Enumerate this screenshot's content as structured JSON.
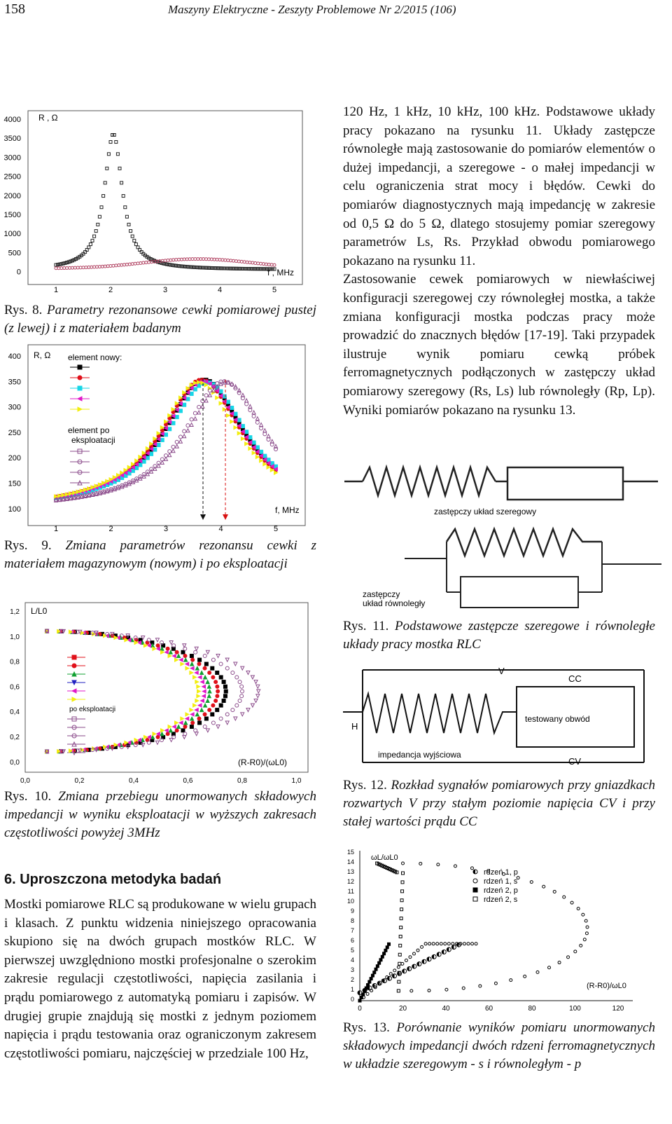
{
  "header": {
    "page_number": "158",
    "journal": "Maszyny Elektryczne - Zeszyty Problemowe Nr 2/2015 (106)"
  },
  "figures": {
    "fig8": {
      "caption_label": "Rys. 8.",
      "caption": " Parametry rezonansowe cewki pomiarowej pustej (z lewej) i z materiałem badanym",
      "y_axis_label": "R , Ω",
      "x_axis_label": "f , MHz",
      "y_ticks": [
        "4000",
        "3500",
        "3000",
        "2500",
        "2000",
        "1500",
        "1000",
        "500",
        "0"
      ],
      "x_ticks": [
        "1",
        "2",
        "3",
        "4",
        "5"
      ]
    },
    "fig9": {
      "caption_label": "Rys. 9.",
      "caption": " Zmiana parametrów rezonansu cewki z materiałem magazynowym (nowym) i po eksploatacji",
      "y_axis_label": "R, Ω",
      "x_axis_label": "f, MHz",
      "legend_new": "element nowy:",
      "legend_used_1": "element po",
      "legend_used_2": "eksploatacji",
      "y_ticks": [
        "400",
        "350",
        "300",
        "250",
        "200",
        "150",
        "100"
      ],
      "x_ticks": [
        "1",
        "2",
        "3",
        "4",
        "5"
      ]
    },
    "fig10": {
      "caption_label": "Rys. 10.",
      "caption": " Zmiana przebiegu unormowanych składowych impedancji w wyniku eksploatacji w wyższych zakresach częstotliwości powyżej 3MHz",
      "y_axis_label": "L/L0",
      "x_axis_label": "(R-R0)/(ωL0)",
      "legend_used": "po eksploatacji",
      "y_ticks": [
        "1,2",
        "1,0",
        "0,8",
        "0,6",
        "0,4",
        "0,2",
        "0,0"
      ],
      "x_ticks": [
        "0,0",
        "0,2",
        "0,4",
        "0,6",
        "0,8",
        "1,0"
      ]
    },
    "fig11": {
      "caption_label": "Rys. 11.",
      "caption": " Podstawowe zastępcze szeregowe i równoległe układy pracy mostka RLC",
      "series_label": "zastępczy układ szeregowy",
      "parallel_label_1": "zastępczy",
      "parallel_label_2": "układ równoległy"
    },
    "fig12": {
      "caption_label": "Rys. 12.",
      "caption": " Rozkład sygnałów pomiarowych przy gniazdkach rozwartych V przy stałym poziomie napięcia CV i przy stałej wartości prądu CC",
      "label_v": "V",
      "label_cc": "CC",
      "label_h": "H",
      "label_cv": "CV",
      "box_label": "testowany obwód",
      "impedance_label": "impedancja wyjściowa"
    },
    "fig13": {
      "caption_label": "Rys. 13.",
      "caption": " Porównanie wyników pomiaru unormowanych składowych impedancji dwóch rdzeni ferromagnetycznych w układzie szeregowym - s i równoległym - p",
      "y_axis_label": "ωL/ωL0",
      "x_axis_label": "(R-R0)/ωL0",
      "legend": [
        "rdzeń 1, p",
        "rdzeń 1, s",
        "rdzeń 2, p",
        "rdzeń 2, s"
      ],
      "y_ticks": [
        "15",
        "14",
        "13",
        "12",
        "11",
        "10",
        "9",
        "8",
        "7",
        "6",
        "5",
        "4",
        "3",
        "2",
        "1",
        "0"
      ],
      "x_ticks": [
        "0",
        "20",
        "40",
        "60",
        "80",
        "100",
        "120"
      ]
    }
  },
  "section": {
    "heading": "6. Uproszczona metodyka badań",
    "paragraph": "Mostki pomiarowe RLC są produkowane w wielu grupach i klasach. Z punktu widzenia niniejszego opracowania skupiono się na dwóch grupach mostków RLC. W pierwszej uwzględniono mostki profesjonalne o szerokim zakresie regulacji częstotliwości, napięcia zasilania i prądu pomiarowego z automatyką pomiaru i zapisów. W drugiej grupie znajdują się mostki z jednym poziomem napięcia i prądu testowania oraz ograniczonym zakresem częstotliwości pomiaru, najczęściej w przedziale 100 Hz,"
  },
  "right_column": {
    "paragraph1": "120 Hz, 1 kHz, 10 kHz, 100 kHz. Podstawowe układy pracy pokazano na rysunku 11. Układy zastępcze równoległe mają zastosowanie do pomiarów elementów o dużej impedancji, a szeregowe - o małej impedancji w celu ograniczenia strat mocy i błędów. Cewki do pomiarów diagnostycznych mają impedancję w zakresie od 0,5 Ω do 5 Ω, dlatego stosujemy pomiar szeregowy parametrów Ls, Rs. Przykład obwodu pomiarowego pokazano na rysunku 11.",
    "paragraph2": "Zastosowanie cewek pomiarowych w niewłaściwej konfiguracji szeregowej czy równoległej mostka, a także zmiana konfiguracji mostka podczas pracy może prowadzić do znacznych błędów [17-19]. Taki przypadek ilustruje wynik pomiaru cewką próbek ferromagnetycznych podłączonych w zastępczy układ pomiarowy szeregowy (Rs, Ls) lub równoległy (Rp, Lp). Wyniki pomiarów pokazano na rysunku 13."
  },
  "colors": {
    "black": "#000000",
    "red": "#e0101a",
    "cyan": "#16d6e6",
    "magenta": "#e018c8",
    "yellow": "#f2ee10",
    "violet": "#8a4a8a",
    "pink": "#d28aa0"
  }
}
